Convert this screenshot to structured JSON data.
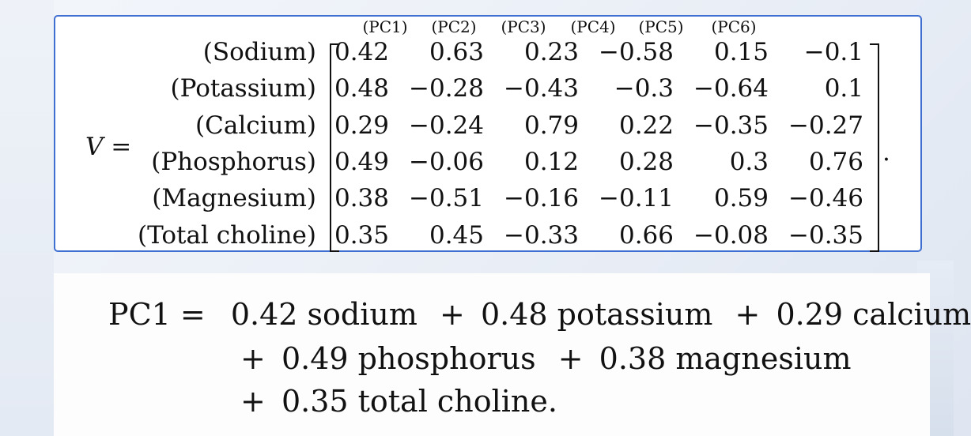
{
  "matrix": {
    "symbol": "V",
    "equals": "=",
    "columns": [
      "(PC1)",
      "(PC2)",
      "(PC3)",
      "(PC4)",
      "(PC5)",
      "(PC6)"
    ],
    "rows": [
      {
        "label": "(Sodium)",
        "values": [
          "0.42",
          "0.63",
          "0.23",
          "−0.58",
          "0.15",
          "−0.1"
        ]
      },
      {
        "label": "(Potassium)",
        "values": [
          "0.48",
          "−0.28",
          "−0.43",
          "−0.3",
          "−0.64",
          "0.1"
        ]
      },
      {
        "label": "(Calcium)",
        "values": [
          "0.29",
          "−0.24",
          "0.79",
          "0.22",
          "−0.35",
          "−0.27"
        ]
      },
      {
        "label": "(Phosphorus)",
        "values": [
          "0.49",
          "−0.06",
          "0.12",
          "0.28",
          "0.3",
          "0.76"
        ]
      },
      {
        "label": "(Magnesium)",
        "values": [
          "0.38",
          "−0.51",
          "−0.16",
          "−0.11",
          "0.59",
          "−0.46"
        ]
      },
      {
        "label": "(Total choline)",
        "values": [
          "0.35",
          "0.45",
          "−0.33",
          "0.66",
          "−0.08",
          "−0.35"
        ]
      }
    ],
    "trailing_period": "."
  },
  "equation": {
    "line1": [
      "PC1 =",
      "0.42 sodium",
      "+",
      "0.48 potassium",
      "+",
      "0.29 calcium"
    ],
    "line2": [
      "+",
      "0.49 phosphorus",
      "+",
      "0.38 magnesium"
    ],
    "line3": [
      "+",
      "0.35 total choline."
    ]
  }
}
